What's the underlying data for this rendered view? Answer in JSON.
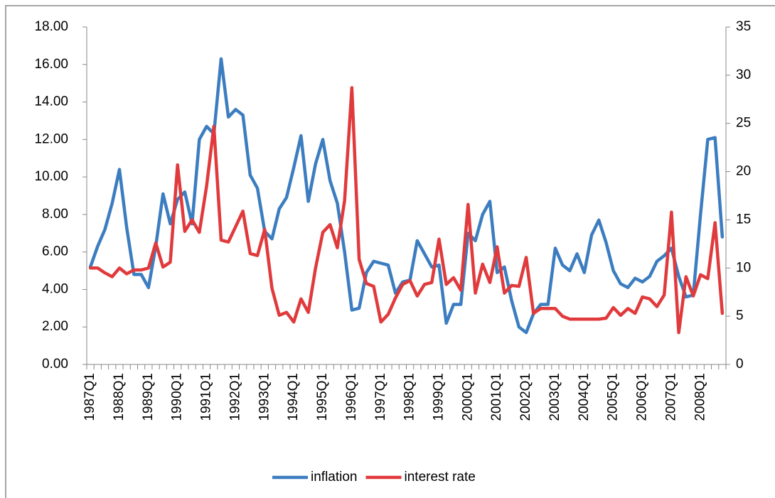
{
  "chart_data": {
    "type": "line",
    "categories": [
      "1987Q1",
      null,
      null,
      null,
      "1988Q1",
      null,
      null,
      null,
      "1989Q1",
      null,
      null,
      null,
      "1990Q1",
      null,
      null,
      null,
      "1991Q1",
      null,
      null,
      null,
      "1992Q1",
      null,
      null,
      null,
      "1993Q1",
      null,
      null,
      null,
      "1994Q1",
      null,
      null,
      null,
      "1995Q1",
      null,
      null,
      null,
      "1996Q1",
      null,
      null,
      null,
      "1997Q1",
      null,
      null,
      null,
      "1998Q1",
      null,
      null,
      null,
      "1999Q1",
      null,
      null,
      null,
      "2000Q1",
      null,
      null,
      null,
      "2001Q1",
      null,
      null,
      null,
      "2002Q1",
      null,
      null,
      null,
      "2003Q1",
      null,
      null,
      null,
      "2004Q1",
      null,
      null,
      null,
      "2005Q1",
      null,
      null,
      null,
      "2006Q1",
      null,
      null,
      null,
      "2007Q1",
      null,
      null,
      null,
      "2008Q1",
      null,
      null,
      null
    ],
    "series": [
      {
        "name": "inflation",
        "color": "#3c7dc0",
        "values": [
          5.2,
          6.3,
          7.2,
          8.6,
          10.4,
          7.3,
          4.8,
          4.8,
          4.1,
          6.3,
          9.1,
          7.5,
          8.8,
          9.2,
          7.5,
          12.0,
          12.7,
          12.3,
          16.3,
          13.2,
          13.6,
          13.3,
          10.1,
          9.4,
          7.1,
          6.7,
          8.3,
          8.9,
          10.5,
          12.2,
          8.7,
          10.7,
          12.0,
          9.8,
          8.6,
          6.0,
          2.9,
          3.0,
          4.9,
          5.5,
          5.4,
          5.3,
          3.8,
          4.4,
          4.5,
          6.6,
          5.9,
          5.2,
          5.3,
          2.2,
          3.2,
          3.2,
          7.0,
          6.6,
          8.0,
          8.7,
          4.9,
          5.2,
          3.4,
          2.0,
          1.7,
          2.7,
          3.2,
          3.2,
          6.2,
          5.3,
          5.0,
          5.9,
          4.9,
          6.9,
          7.7,
          6.5,
          5.0,
          4.3,
          4.1,
          4.6,
          4.4,
          4.7,
          5.5,
          5.8,
          6.2,
          4.7,
          3.6,
          3.7,
          8.0,
          12.0,
          12.1,
          6.8
        ]
      },
      {
        "name": "interest rate",
        "color": "#e03a3c",
        "axis": "y2",
        "values": [
          10.0,
          10.0,
          9.5,
          9.1,
          10.0,
          9.4,
          9.8,
          9.8,
          10.0,
          12.6,
          10.1,
          10.6,
          20.7,
          13.8,
          15.0,
          13.7,
          18.5,
          24.7,
          12.9,
          12.7,
          14.3,
          15.9,
          11.5,
          11.3,
          14.0,
          7.9,
          5.1,
          5.4,
          4.4,
          6.8,
          5.4,
          10.0,
          13.7,
          14.5,
          12.1,
          17.0,
          28.7,
          10.9,
          8.4,
          8.1,
          4.4,
          5.2,
          6.9,
          8.3,
          8.7,
          7.1,
          8.3,
          8.5,
          13.0,
          8.3,
          9.0,
          7.7,
          16.6,
          7.4,
          10.4,
          8.5,
          12.2,
          7.4,
          8.2,
          8.1,
          11.1,
          5.3,
          5.8,
          5.8,
          5.8,
          5.0,
          4.7,
          4.7,
          4.7,
          4.7,
          4.7,
          4.8,
          5.9,
          5.1,
          5.8,
          5.3,
          7.0,
          6.8,
          6.0,
          7.2,
          15.8,
          3.3,
          9.1,
          7.1,
          9.3,
          8.9,
          14.7,
          5.3
        ]
      }
    ],
    "ylim": [
      0,
      18
    ],
    "yticks": [
      {
        "value": 0,
        "label": "0.00"
      },
      {
        "value": 2,
        "label": "2.00"
      },
      {
        "value": 4,
        "label": "4.00"
      },
      {
        "value": 6,
        "label": "6.00"
      },
      {
        "value": 8,
        "label": "8.00"
      },
      {
        "value": 10,
        "label": "10.00"
      },
      {
        "value": 12,
        "label": "12.00"
      },
      {
        "value": 14,
        "label": "14.00"
      },
      {
        "value": 16,
        "label": "16.00"
      },
      {
        "value": 18,
        "label": "18.00"
      }
    ],
    "y2lim": [
      0,
      35
    ],
    "y2ticks": [
      0,
      5,
      10,
      15,
      20,
      25,
      30,
      35
    ],
    "grid": false,
    "legend": "bottom"
  }
}
